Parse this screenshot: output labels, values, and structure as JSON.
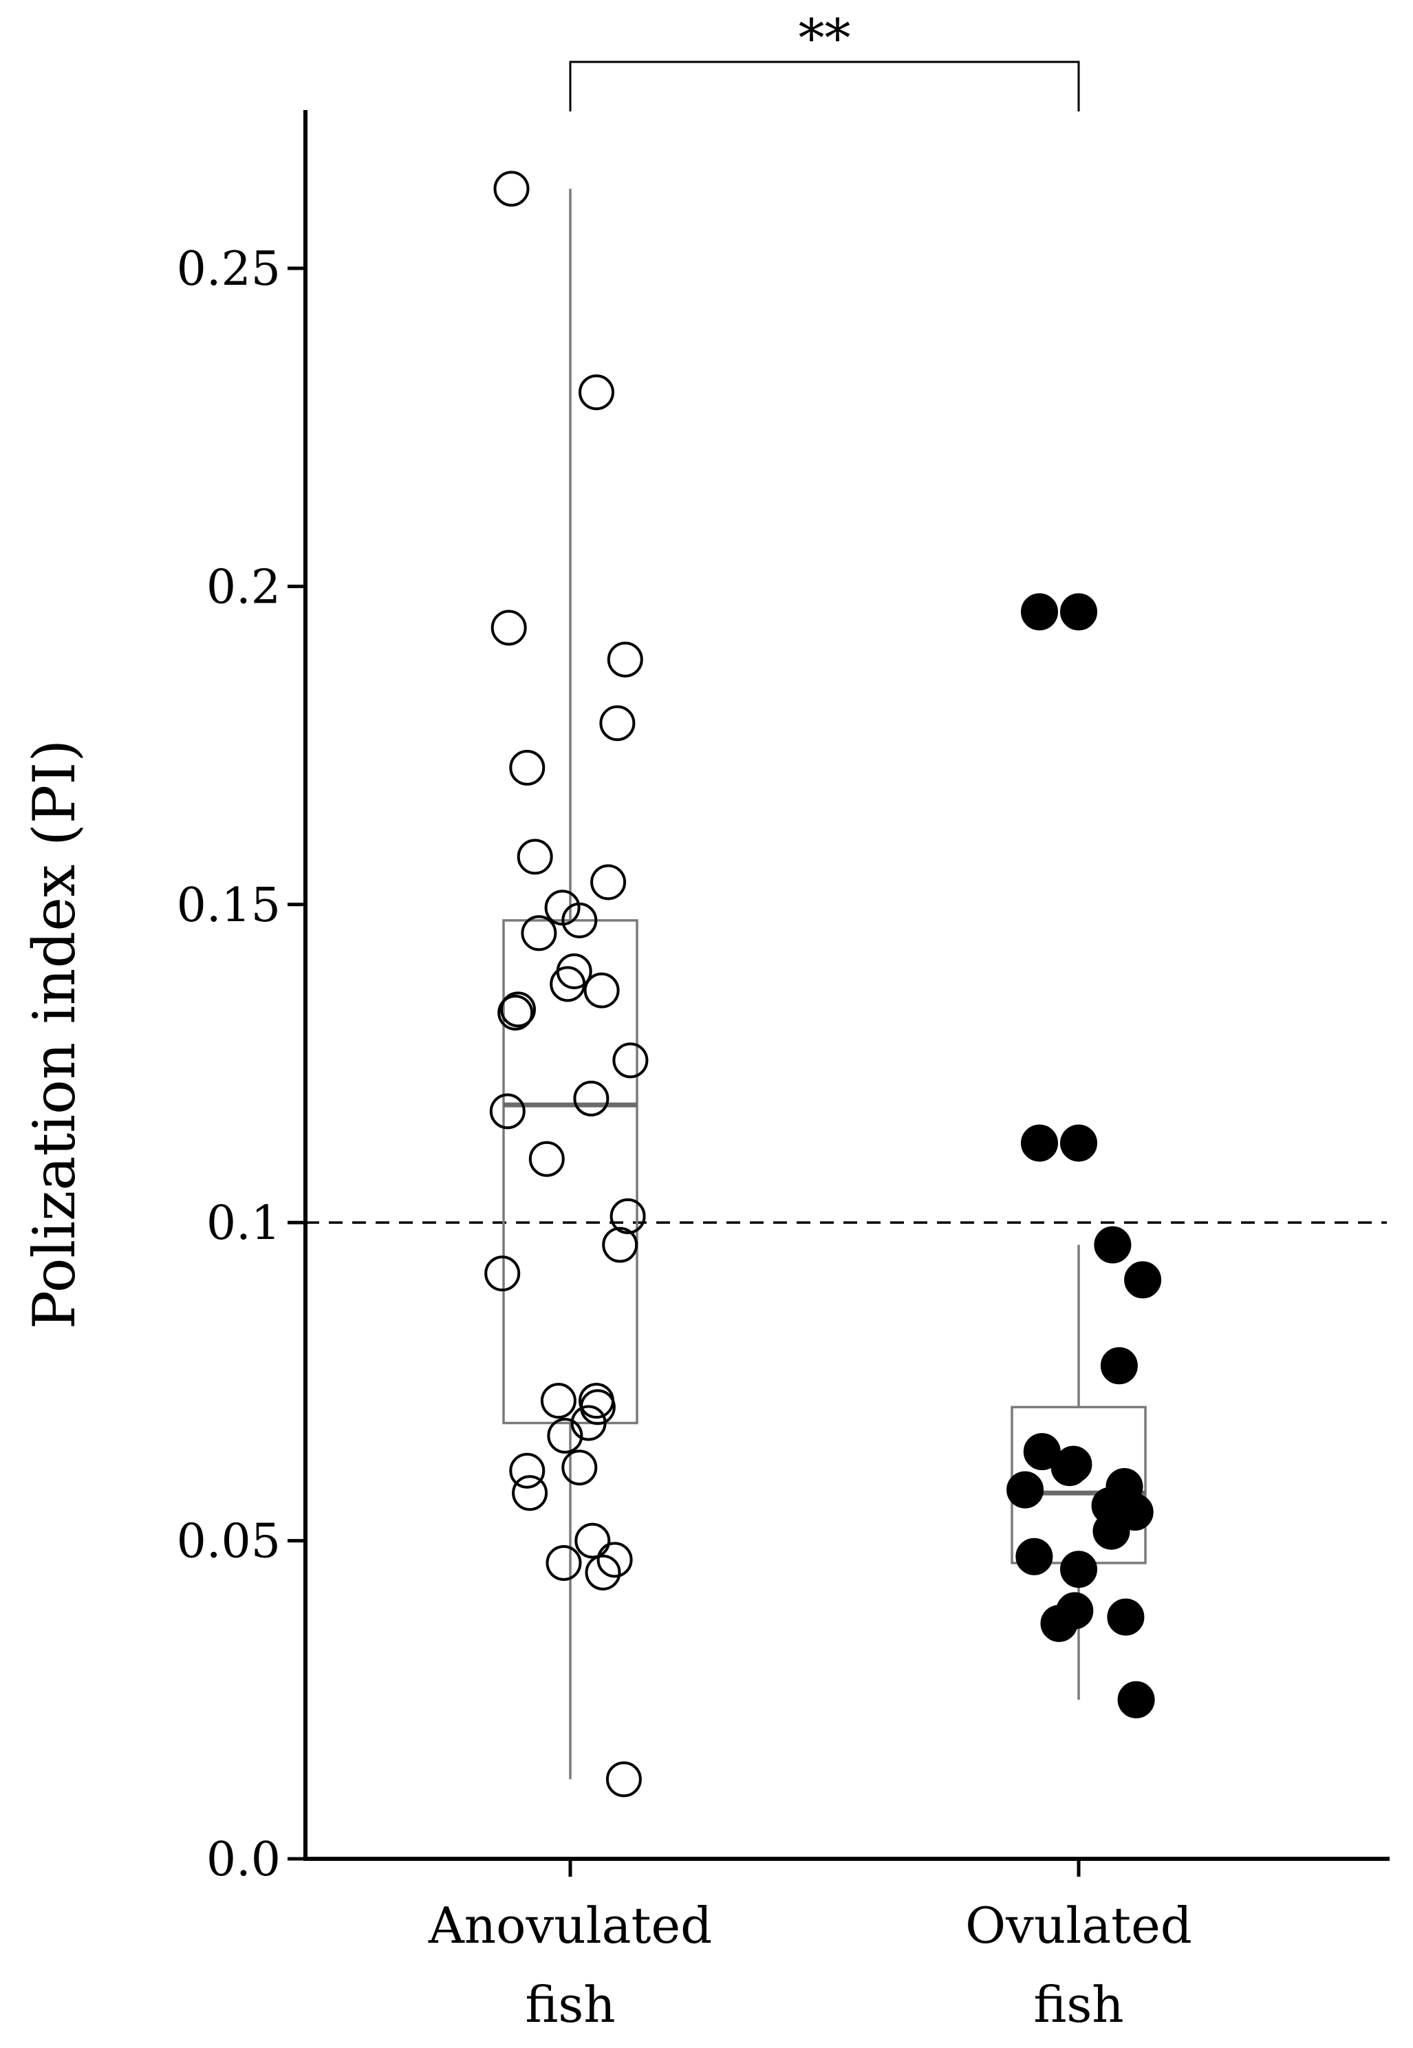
{
  "chart_data": {
    "type": "scatter",
    "ylabel": "Polization index (PI)",
    "xlabel": "",
    "ylim": [
      0,
      0.27
    ],
    "yticks": [
      0.0,
      0.05,
      0.1,
      0.15,
      0.2,
      0.25
    ],
    "ytick_labels": [
      "0.0",
      "0.05",
      "0.1",
      "0.15",
      "0.2",
      "0.25"
    ],
    "categories": [
      "Anovulated fish",
      "Ovulated fish"
    ],
    "category_lines": [
      [
        "Anovulated",
        "fish"
      ],
      [
        "Ovulated",
        "fish"
      ]
    ],
    "reference_line": {
      "y": 0.1,
      "style": "dashed"
    },
    "significance": {
      "label": "**",
      "between": [
        "Anovulated fish",
        "Ovulated fish"
      ]
    },
    "grid": false,
    "legend": "none",
    "series": [
      {
        "category": "Anovulated fish",
        "marker": "open-circle",
        "color": "#000000",
        "box": {
          "whisker_low": 0.0125,
          "q1": 0.0685,
          "median": 0.1185,
          "q3": 0.1475,
          "whisker_high": 0.2625
        },
        "points": [
          {
            "jitter": -0.45,
            "y": 0.2625
          },
          {
            "jitter": 0.2,
            "y": 0.2305
          },
          {
            "jitter": -0.47,
            "y": 0.1935
          },
          {
            "jitter": 0.42,
            "y": 0.1885
          },
          {
            "jitter": 0.36,
            "y": 0.1785
          },
          {
            "jitter": -0.33,
            "y": 0.1715
          },
          {
            "jitter": -0.27,
            "y": 0.1575
          },
          {
            "jitter": 0.29,
            "y": 0.1535
          },
          {
            "jitter": -0.06,
            "y": 0.1495
          },
          {
            "jitter": 0.07,
            "y": 0.1475
          },
          {
            "jitter": -0.24,
            "y": 0.1455
          },
          {
            "jitter": 0.03,
            "y": 0.1395
          },
          {
            "jitter": -0.02,
            "y": 0.1375
          },
          {
            "jitter": 0.24,
            "y": 0.1365
          },
          {
            "jitter": -0.4,
            "y": 0.1335
          },
          {
            "jitter": -0.42,
            "y": 0.133
          },
          {
            "jitter": 0.46,
            "y": 0.1255
          },
          {
            "jitter": 0.16,
            "y": 0.1195
          },
          {
            "jitter": -0.48,
            "y": 0.1175
          },
          {
            "jitter": -0.18,
            "y": 0.11
          },
          {
            "jitter": 0.44,
            "y": 0.101
          },
          {
            "jitter": 0.38,
            "y": 0.0965
          },
          {
            "jitter": -0.52,
            "y": 0.092
          },
          {
            "jitter": -0.09,
            "y": 0.072
          },
          {
            "jitter": 0.2,
            "y": 0.072
          },
          {
            "jitter": 0.21,
            "y": 0.071
          },
          {
            "jitter": 0.14,
            "y": 0.0685
          },
          {
            "jitter": -0.04,
            "y": 0.0665
          },
          {
            "jitter": -0.33,
            "y": 0.061
          },
          {
            "jitter": 0.07,
            "y": 0.0615
          },
          {
            "jitter": -0.31,
            "y": 0.0575
          },
          {
            "jitter": 0.17,
            "y": 0.05
          },
          {
            "jitter": -0.05,
            "y": 0.0465
          },
          {
            "jitter": 0.34,
            "y": 0.047
          },
          {
            "jitter": 0.25,
            "y": 0.045
          },
          {
            "jitter": 0.41,
            "y": 0.0125
          }
        ]
      },
      {
        "category": "Ovulated fish",
        "marker": "filled-circle",
        "color": "#000000",
        "box": {
          "whisker_low": 0.025,
          "q1": 0.0465,
          "median": 0.0575,
          "q3": 0.071,
          "whisker_high": 0.0965
        },
        "points": [
          {
            "jitter": -0.3,
            "y": 0.196
          },
          {
            "jitter": 0.0,
            "y": 0.196
          },
          {
            "jitter": -0.3,
            "y": 0.1125
          },
          {
            "jitter": 0.0,
            "y": 0.1125
          },
          {
            "jitter": 0.26,
            "y": 0.0965
          },
          {
            "jitter": 0.49,
            "y": 0.091
          },
          {
            "jitter": 0.31,
            "y": 0.0775
          },
          {
            "jitter": -0.28,
            "y": 0.064
          },
          {
            "jitter": -0.07,
            "y": 0.0615
          },
          {
            "jitter": -0.04,
            "y": 0.062
          },
          {
            "jitter": -0.41,
            "y": 0.058
          },
          {
            "jitter": 0.35,
            "y": 0.0585
          },
          {
            "jitter": 0.24,
            "y": 0.0555
          },
          {
            "jitter": 0.43,
            "y": 0.0545
          },
          {
            "jitter": 0.25,
            "y": 0.0515
          },
          {
            "jitter": -0.34,
            "y": 0.0475
          },
          {
            "jitter": 0.0,
            "y": 0.0455
          },
          {
            "jitter": -0.03,
            "y": 0.039
          },
          {
            "jitter": -0.15,
            "y": 0.037
          },
          {
            "jitter": 0.36,
            "y": 0.038
          },
          {
            "jitter": 0.44,
            "y": 0.025
          }
        ]
      }
    ]
  }
}
